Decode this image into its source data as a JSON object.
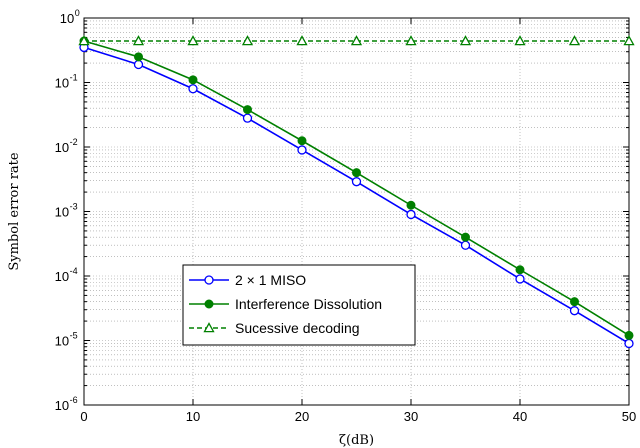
{
  "chart_data": {
    "type": "line",
    "title": "",
    "xlabel": "ζ(dB)",
    "ylabel": "Symbol error rate",
    "xlim": [
      0,
      50
    ],
    "ylim": [
      1e-06,
      1
    ],
    "yscale": "log",
    "grid": true,
    "minor_grid": true,
    "legend_position": "lower-center",
    "x_ticks": [
      0,
      10,
      20,
      30,
      40,
      50
    ],
    "y_tick_exponents": [
      0,
      -1,
      -2,
      -3,
      -4,
      -5,
      -6
    ],
    "y_tick_base": "10",
    "x": [
      0,
      5,
      10,
      15,
      20,
      25,
      30,
      35,
      40,
      45,
      50
    ],
    "series": [
      {
        "name": "2 × 1 MISO",
        "color": "#0000ff",
        "marker": "open-circle",
        "line_style": "solid",
        "values": [
          0.35,
          0.19,
          0.08,
          0.028,
          0.009,
          0.0029,
          0.0009,
          0.0003,
          9e-05,
          2.9e-05,
          9e-06
        ]
      },
      {
        "name": "Interference Dissolution",
        "color": "#008000",
        "marker": "filled-circle",
        "line_style": "solid",
        "values": [
          0.44,
          0.25,
          0.11,
          0.038,
          0.0125,
          0.004,
          0.00125,
          0.0004,
          0.000125,
          4e-05,
          1.2e-05
        ]
      },
      {
        "name": "Sucessive decoding",
        "color": "#008000",
        "marker": "triangle",
        "line_style": "dashed",
        "values": [
          0.44,
          0.44,
          0.44,
          0.44,
          0.44,
          0.44,
          0.44,
          0.44,
          0.44,
          0.44,
          0.44
        ]
      }
    ]
  }
}
